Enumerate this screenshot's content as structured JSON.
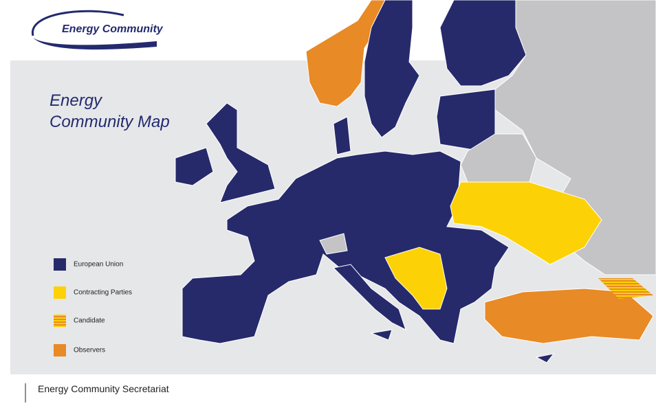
{
  "logo": {
    "text": "Energy Community"
  },
  "title": {
    "lines": [
      "Energy",
      "Community Map"
    ]
  },
  "legend": {
    "items": [
      "European Union",
      "Contracting Parties",
      "Candidate",
      "Observers"
    ]
  },
  "footer": {
    "text": "Energy Community Secretariat"
  }
}
